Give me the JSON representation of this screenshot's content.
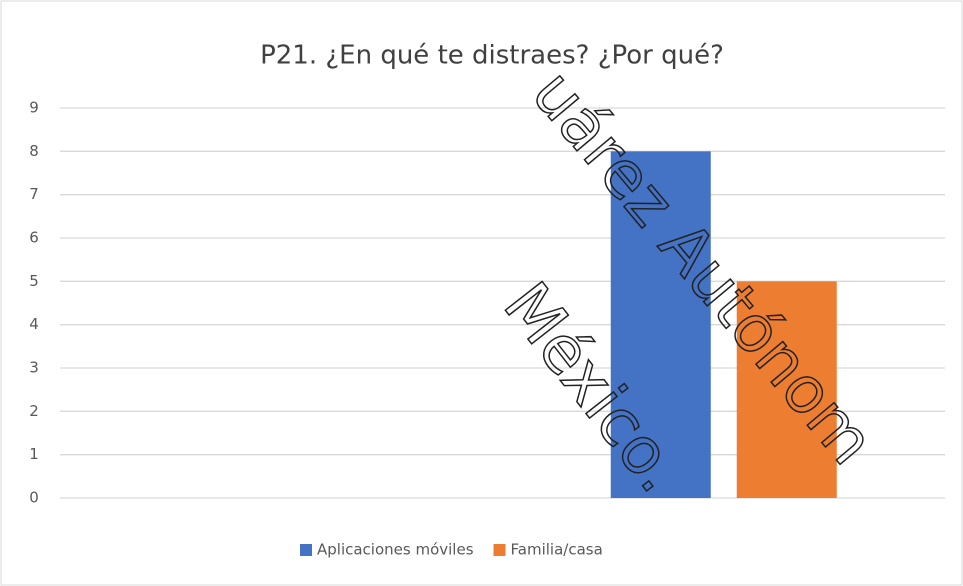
{
  "chart_data": {
    "type": "bar",
    "title": "P21. ¿En qué te distraes? ¿Por qué?",
    "categories": [
      null,
      null
    ],
    "series": [
      {
        "name": "Aplicaciones móviles",
        "color": "#4472c4",
        "values": [
          null,
          8
        ]
      },
      {
        "name": "Familia/casa",
        "color": "#ed7d31",
        "values": [
          null,
          5
        ]
      }
    ],
    "ylim": [
      0,
      9
    ],
    "yticks": [
      0,
      1,
      2,
      3,
      4,
      5,
      6,
      7,
      8,
      9
    ],
    "grid": true,
    "legend": "bottom",
    "annotations": [
      "uárez Autónom",
      "México."
    ]
  }
}
